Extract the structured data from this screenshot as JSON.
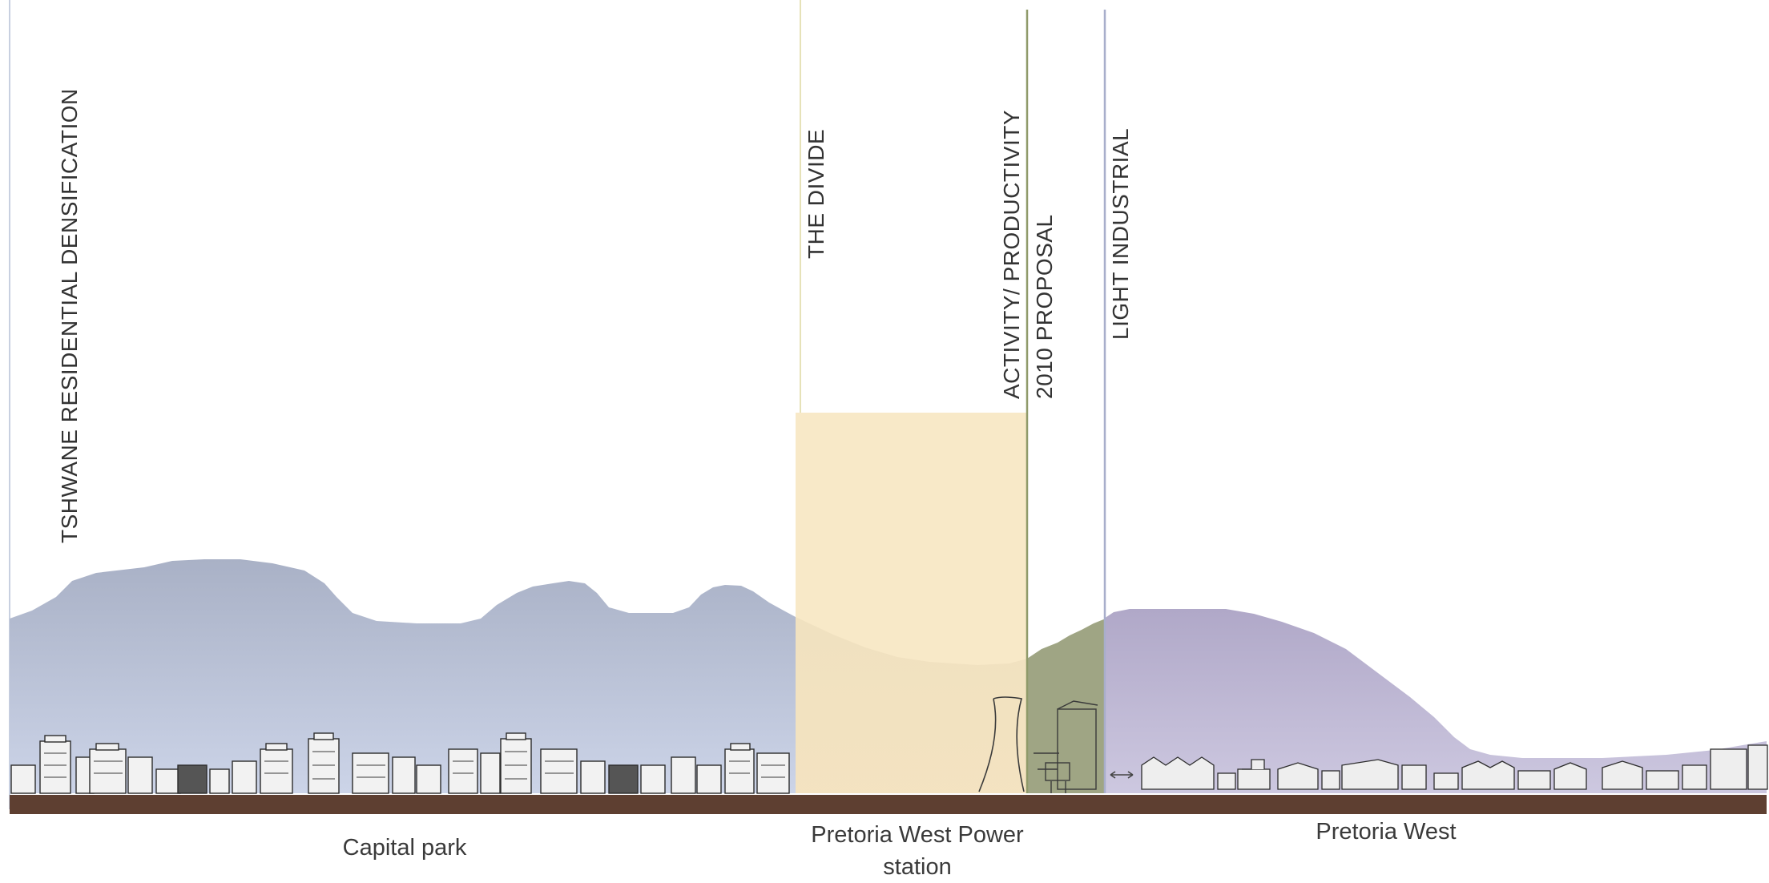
{
  "zones": {
    "left_heading": "TSHWANE RESIDENTIAL DENSIFICATION",
    "divide": "THE DIVIDE",
    "activity": "ACTIVITY/ PRODUCTIVITY",
    "proposal": "2010 PROPOSAL",
    "industrial": "LIGHT INDUSTRIAL"
  },
  "places": {
    "capital_park": "Capital park",
    "power_station": "Pretoria West Power station",
    "pretoria_west": "Pretoria West"
  },
  "colors": {
    "hill_left": "#a9b2c9",
    "hill_right": "#b5aecb",
    "divide_band": "#f5deb0",
    "proposal_band": "#9ea483",
    "ground": "#5e3f31",
    "divide_line": "#e6e2b8",
    "proposal_line": "#8f9a6a",
    "industrial_line": "#a8aecb"
  }
}
